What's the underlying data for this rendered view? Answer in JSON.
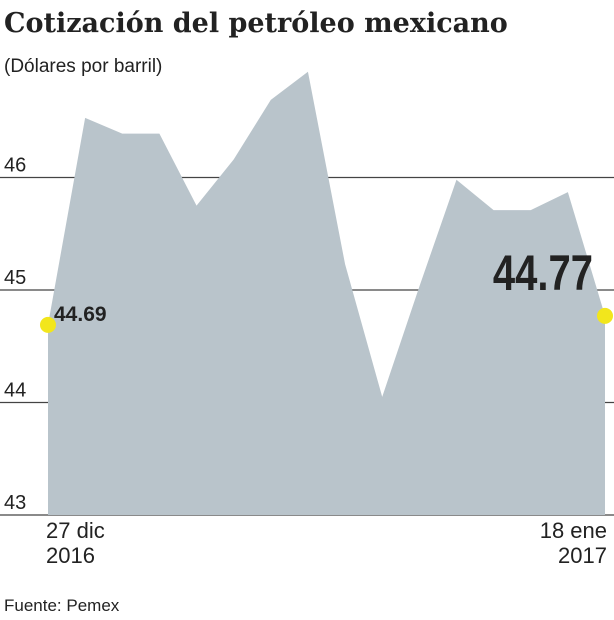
{
  "chart_data": {
    "type": "area",
    "title": "Cotización del petróleo mexicano",
    "subtitle": "(Dólares por barril)",
    "source": "Fuente: Pemex",
    "categories": [
      "27 dic\n2016",
      null,
      null,
      null,
      null,
      null,
      null,
      null,
      null,
      null,
      null,
      null,
      null,
      null,
      null,
      "18 ene\n2017"
    ],
    "values": [
      44.69,
      46.53,
      46.39,
      46.39,
      45.75,
      46.16,
      46.69,
      46.94,
      45.23,
      44.05,
      45.03,
      45.98,
      45.71,
      45.71,
      45.87,
      44.77
    ],
    "color": "#b9c4cb",
    "marker_color": "#f2e61c",
    "ylim": [
      43,
      47
    ],
    "yticks": [
      43,
      44,
      45,
      46
    ],
    "grid": true
  }
}
